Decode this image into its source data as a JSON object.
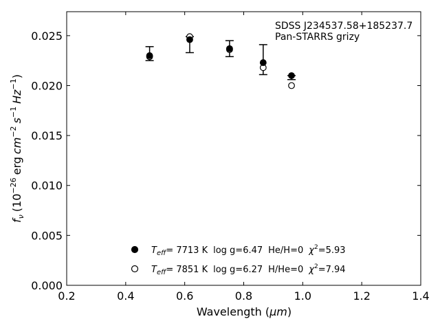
{
  "chart_data": {
    "type": "scatter",
    "xlabel_text": "Wavelength (",
    "xlabel_unit": "μm",
    "xlabel_close": ")",
    "ylabel_prefix": "f",
    "ylabel_sub": "ν",
    "ylabel_a": "(10",
    "ylabel_exp1": "−26",
    "ylabel_b": "erg",
    "ylabel_cm": "cm",
    "ylabel_exp2": "−2",
    "ylabel_s": "s",
    "ylabel_exp3": "−1",
    "ylabel_hz": "Hz",
    "ylabel_exp4": "−1",
    "ylabel_close": ")",
    "xlim": [
      0.2,
      1.4
    ],
    "ylim": [
      0.0,
      0.0274
    ],
    "x_ticks": [
      0.2,
      0.4,
      0.6,
      0.8,
      1.0,
      1.2,
      1.4
    ],
    "x_tick_labels": [
      "0.2",
      "0.4",
      "0.6",
      "0.8",
      "1.0",
      "1.2",
      "1.4"
    ],
    "y_ticks": [
      0.0,
      0.005,
      0.01,
      0.015,
      0.02,
      0.025
    ],
    "y_tick_labels": [
      "0.000",
      "0.005",
      "0.010",
      "0.015",
      "0.020",
      "0.025"
    ],
    "annotation_lines": [
      "SDSS J234537.58+185237.7",
      "Pan-STARRS grizy"
    ],
    "observed": {
      "x": [
        0.481,
        0.617,
        0.752,
        0.866,
        0.962
      ],
      "y": [
        0.0232,
        0.0241,
        0.0237,
        0.0226,
        0.0208
      ],
      "yerr": [
        0.0007,
        0.0008,
        0.0008,
        0.0015,
        0.0002
      ]
    },
    "series": [
      {
        "marker": "filled",
        "x": [
          0.481,
          0.617,
          0.752,
          0.866,
          0.962
        ],
        "y": [
          0.023,
          0.0246,
          0.0237,
          0.0223,
          0.021
        ],
        "legend": {
          "teff_label": "T",
          "teff_sub": "eff",
          "eq_temp": "=  7713 K",
          "logg": "log g=6.47",
          "comp": "He/H=0",
          "chi": "χ",
          "chi_exp": "2",
          "chi_val": "=5.93"
        }
      },
      {
        "marker": "open",
        "x": [
          0.481,
          0.617,
          0.752,
          0.866,
          0.962
        ],
        "y": [
          0.0229,
          0.0249,
          0.0236,
          0.0218,
          0.02
        ],
        "legend": {
          "teff_label": "T",
          "teff_sub": "eff",
          "eq_temp": "=  7851 K",
          "logg": "log g=6.27",
          "comp": "H/He=0",
          "chi": "χ",
          "chi_exp": "2",
          "chi_val": "=7.94"
        }
      }
    ],
    "legend_placement": "lower-center",
    "grid": false
  }
}
